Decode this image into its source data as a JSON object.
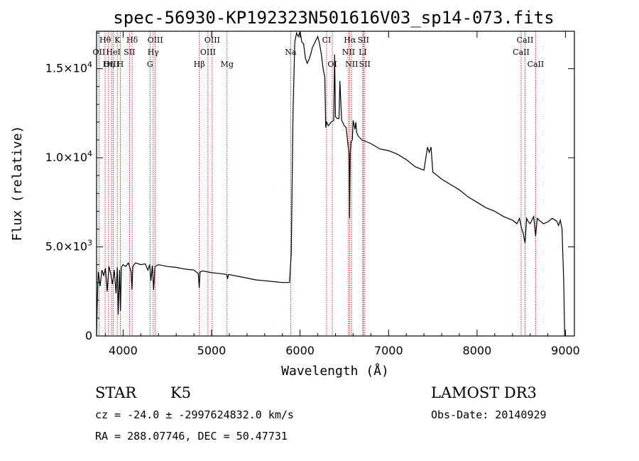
{
  "chart_data": {
    "type": "line",
    "title": "spec-56930-KP192323N501616V03_sp14-073.fits",
    "xlabel": "Wavelength (Å)",
    "ylabel": "Flux (relative)",
    "xlim": [
      3700,
      9100
    ],
    "ylim": [
      0,
      17100
    ],
    "x_ticks": [
      4000,
      5000,
      6000,
      7000,
      8000,
      9000
    ],
    "x_tick_labels": [
      "4000",
      "5000",
      "6000",
      "7000",
      "8000",
      "9000"
    ],
    "y_ticks": [
      0,
      5000,
      10000,
      15000
    ],
    "y_tick_labels": [
      {
        "base": "0",
        "exp": ""
      },
      {
        "base": "5.0×10",
        "exp": "3"
      },
      {
        "base": "1.0×10",
        "exp": "4"
      },
      {
        "base": "1.5×10",
        "exp": "4"
      }
    ],
    "series": [
      {
        "name": "flux",
        "x": [
          3700,
          3710,
          3720,
          3740,
          3760,
          3780,
          3800,
          3820,
          3840,
          3860,
          3880,
          3900,
          3920,
          3935,
          3945,
          3960,
          3970,
          3980,
          4000,
          4030,
          4060,
          4090,
          4100,
          4110,
          4140,
          4200,
          4250,
          4280,
          4300,
          4315,
          4330,
          4345,
          4360,
          4400,
          4500,
          4600,
          4700,
          4800,
          4850,
          4860,
          4870,
          4900,
          5000,
          5100,
          5170,
          5180,
          5190,
          5300,
          5400,
          5500,
          5600,
          5700,
          5800,
          5880,
          5900,
          5920,
          5940,
          5960,
          5980,
          6000,
          6020,
          6040,
          6060,
          6080,
          6100,
          6120,
          6140,
          6160,
          6180,
          6200,
          6220,
          6240,
          6260,
          6280,
          6290,
          6300,
          6320,
          6350,
          6380,
          6390,
          6400,
          6420,
          6440,
          6450,
          6470,
          6500,
          6520,
          6540,
          6555,
          6560,
          6563,
          6568,
          6575,
          6590,
          6600,
          6620,
          6630,
          6640,
          6660,
          6680,
          6700,
          6750,
          6800,
          6900,
          7000,
          7100,
          7200,
          7300,
          7400,
          7440,
          7460,
          7480,
          7500,
          7600,
          7700,
          7800,
          7900,
          8000,
          8100,
          8200,
          8300,
          8400,
          8450,
          8480,
          8500,
          8520,
          8542,
          8560,
          8580,
          8600,
          8640,
          8662,
          8680,
          8700,
          8750,
          8800,
          8850,
          8900,
          8920,
          8940,
          8960,
          8980,
          8990
        ],
        "y": [
          0,
          2200,
          3600,
          2800,
          3700,
          3400,
          3800,
          2500,
          3900,
          3500,
          2900,
          3700,
          2400,
          3850,
          1200,
          3700,
          1400,
          3850,
          4000,
          3900,
          4100,
          3600,
          2600,
          3900,
          4100,
          4000,
          4050,
          3700,
          4000,
          3100,
          3950,
          2600,
          3900,
          4000,
          3900,
          3850,
          3750,
          3700,
          3500,
          2700,
          3600,
          3650,
          3550,
          3500,
          3450,
          3200,
          3450,
          3350,
          3250,
          3150,
          3100,
          3050,
          3000,
          3000,
          4600,
          12500,
          16500,
          17000,
          16800,
          17100,
          16500,
          16400,
          15600,
          15300,
          15500,
          15800,
          16200,
          16400,
          16600,
          16800,
          16400,
          15800,
          15000,
          14500,
          11700,
          12000,
          11800,
          12000,
          12100,
          15800,
          12300,
          12200,
          12200,
          14300,
          12100,
          11800,
          11700,
          10800,
          10200,
          6600,
          8200,
          10300,
          10900,
          11000,
          12100,
          11600,
          12000,
          11400,
          11200,
          11100,
          11000,
          10900,
          10800,
          10500,
          10400,
          10200,
          9900,
          9500,
          9300,
          10600,
          10300,
          10600,
          9200,
          8800,
          8500,
          8200,
          7800,
          7500,
          7200,
          7000,
          6700,
          6500,
          6300,
          6600,
          6100,
          5800,
          5200,
          6600,
          6400,
          6300,
          6700,
          5600,
          6600,
          6500,
          6300,
          6400,
          6600,
          6450,
          6200,
          6500,
          6000,
          3000,
          0
        ]
      }
    ],
    "line_markers": [
      {
        "label": "Hθ",
        "x": 3797,
        "row": 0
      },
      {
        "label": "OII",
        "x": 3727,
        "row": 1
      },
      {
        "label": "OIII",
        "x": 3869,
        "row": 2
      },
      {
        "label": "Hη",
        "x": 3835,
        "row": 2
      },
      {
        "label": "K",
        "x": 3934,
        "row": 0
      },
      {
        "label": "HeI",
        "x": 3889,
        "row": 1
      },
      {
        "label": "SII",
        "x": 4072,
        "row": 1
      },
      {
        "label": "H",
        "x": 3968,
        "row": 2
      },
      {
        "label": "Hδ",
        "x": 4102,
        "row": 0
      },
      {
        "label": "OIII",
        "x": 4363,
        "row": 0
      },
      {
        "label": "Hγ",
        "x": 4340,
        "row": 1
      },
      {
        "label": "G",
        "x": 4304,
        "row": 2
      },
      {
        "label": "OIII",
        "x": 5007,
        "row": 0
      },
      {
        "label": "OIII",
        "x": 4959,
        "row": 1
      },
      {
        "label": "Hβ",
        "x": 4861,
        "row": 2
      },
      {
        "label": "Mg",
        "x": 5175,
        "row": 2
      },
      {
        "label": "Na",
        "x": 5893,
        "row": 1
      },
      {
        "label": "CI",
        "x": 6300,
        "row": 0
      },
      {
        "label": "OI",
        "x": 6364,
        "row": 2
      },
      {
        "label": "Hα",
        "x": 6563,
        "row": 0
      },
      {
        "label": "SII",
        "x": 6716,
        "row": 0
      },
      {
        "label": "NII",
        "x": 6548,
        "row": 1
      },
      {
        "label": "LI",
        "x": 6708,
        "row": 1
      },
      {
        "label": "NII",
        "x": 6583,
        "row": 2
      },
      {
        "label": "SII",
        "x": 6731,
        "row": 2
      },
      {
        "label": "CaII",
        "x": 8542,
        "row": 0
      },
      {
        "label": "CaII",
        "x": 8498,
        "row": 1
      },
      {
        "label": "CaII",
        "x": 8662,
        "row": 2
      }
    ],
    "marker_color": "#c00000",
    "line_color": "#000000"
  },
  "info": {
    "class": "STAR",
    "subclass": "K5",
    "survey": "LAMOST DR3",
    "cz": "cz = -24.0 ± -2997624832.0 km/s",
    "obs_date": "Obs-Date: 20140929",
    "radec": "RA = 288.07746, DEC =  50.47731"
  }
}
